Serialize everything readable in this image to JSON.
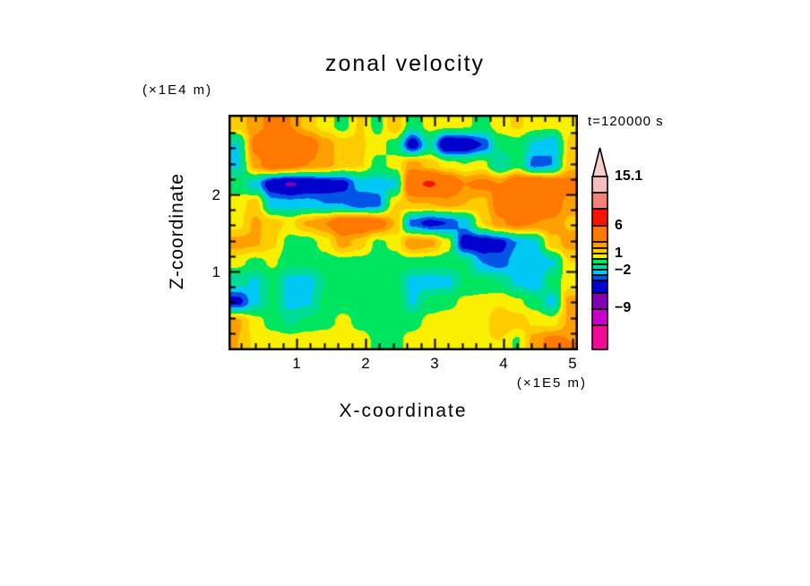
{
  "title": "zonal velocity",
  "time_label": "t=120000 s",
  "x_axis": {
    "title": "X-coordinate",
    "units": "(×1E5 m)",
    "ticks": [
      "1",
      "2",
      "3",
      "4",
      "5"
    ]
  },
  "y_axis": {
    "title": "Z-coordinate",
    "units": "(×1E4 m)",
    "ticks": [
      "2",
      "1"
    ]
  },
  "colorbar": {
    "labels": [
      "15.1",
      "6",
      "1",
      "−2",
      "−9"
    ],
    "arrow_color": "#F6CCCC"
  },
  "chart_data": {
    "type": "heatmap",
    "title": "zonal velocity",
    "xlabel": "X-coordinate",
    "ylabel": "Z-coordinate",
    "x_units": "(×1E5 m)",
    "y_units": "(×1E4 m)",
    "time": "t=120000 s",
    "xlim": [
      0,
      5.1
    ],
    "ylim": [
      0,
      3.05
    ],
    "x_major_ticks": [
      1,
      2,
      3,
      4,
      5
    ],
    "y_major_ticks": [
      1,
      2
    ],
    "minor_tick_step": 0.2,
    "value_range": [
      -15,
      15.1
    ],
    "colorbar_tick_labels": [
      "15.1",
      "6",
      "1",
      "−2",
      "−9"
    ],
    "contour_levels": [
      -12,
      -9,
      -6,
      -4,
      -3,
      -2,
      -1,
      0,
      1,
      2,
      3,
      6,
      9,
      12
    ],
    "colors": [
      "#F00A96",
      "#C800C8",
      "#8200B4",
      "#0000CD",
      "#0055E6",
      "#00C8F5",
      "#00DC96",
      "#00E55F",
      "#F8F000",
      "#FFCC00",
      "#FFA000",
      "#FF7800",
      "#F51400",
      "#F08278",
      "#F5BEBE"
    ],
    "colorbar_seg_heights": [
      18,
      18,
      19,
      18,
      7,
      6,
      6,
      6,
      6,
      6,
      6,
      14,
      18,
      18,
      27
    ],
    "grid_note": "approximate zonal velocity field, 12 rows (top to bottom) x 20 cols (left to right)",
    "grid": [
      [
        1.5,
        2.5,
        3.5,
        3.0,
        1.5,
        0.5,
        -0.5,
        1.2,
        -0.5,
        2.0,
        -1.0,
        0.5,
        0.5,
        0.3,
        -0.5,
        0.6,
        1.2,
        0.5,
        0.3,
        0.8
      ],
      [
        -2.0,
        3.5,
        5.5,
        4.5,
        4.0,
        2.5,
        1.5,
        1.2,
        0.5,
        -0.5,
        -5.0,
        -1.5,
        -6.0,
        -5.5,
        -4.0,
        -0.8,
        -0.5,
        -2.2,
        -3.0,
        1.2
      ],
      [
        -2.2,
        2.5,
        4.5,
        4.0,
        3.0,
        2.5,
        1.5,
        1.2,
        -0.4,
        0.4,
        2.5,
        1.5,
        0.5,
        0.0,
        0.5,
        -2.0,
        -0.5,
        -3.5,
        -3.0,
        1.5
      ],
      [
        -0.5,
        -2.3,
        -5.2,
        -6.2,
        -5.5,
        -5.0,
        -4.5,
        -2.5,
        -2.5,
        -2.2,
        5.5,
        6.3,
        5.0,
        3.0,
        3.5,
        3.0,
        4.5,
        5.0,
        4.5,
        3.5
      ],
      [
        0.5,
        1.5,
        -2.5,
        -2.6,
        -2.5,
        -3.0,
        -3.0,
        -4.0,
        -3.5,
        1.0,
        2.0,
        2.0,
        2.5,
        2.0,
        1.5,
        3.8,
        4.2,
        4.0,
        4.0,
        2.5
      ],
      [
        0.6,
        2.2,
        1.5,
        0.8,
        2.2,
        3.0,
        4.5,
        4.8,
        4.0,
        2.0,
        -3.5,
        -4.5,
        -4.0,
        -2.5,
        1.0,
        2.8,
        3.5,
        3.0,
        2.8,
        1.8
      ],
      [
        2.5,
        2.2,
        1.2,
        -0.5,
        -0.6,
        0.5,
        2.5,
        1.5,
        -0.3,
        0.3,
        3.0,
        2.5,
        0.5,
        -5.0,
        -5.2,
        -4.5,
        -3.0,
        -2.2,
        1.5,
        2.5
      ],
      [
        0.3,
        -0.4,
        0.2,
        -0.8,
        -0.7,
        -0.6,
        -0.5,
        -0.5,
        -0.4,
        -0.5,
        -0.6,
        -0.7,
        -0.6,
        -0.8,
        -3.0,
        -3.5,
        -2.5,
        -3.0,
        -2.2,
        1.0
      ],
      [
        -1.5,
        -2.2,
        -0.8,
        -2.4,
        -2.5,
        -1.0,
        -0.8,
        -0.6,
        -0.5,
        -0.6,
        -2.4,
        -2.5,
        -2.4,
        -0.8,
        -0.6,
        -1.0,
        -2.2,
        -3.0,
        -0.5,
        0.5
      ],
      [
        -4.5,
        -2.2,
        -0.8,
        -2.4,
        -2.2,
        -0.8,
        -0.6,
        -0.5,
        -0.4,
        -0.3,
        -2.2,
        -0.6,
        -0.3,
        0.2,
        0.3,
        0.8,
        0.2,
        -0.5,
        -2.5,
        2.5
      ],
      [
        2.2,
        0.5,
        -0.5,
        -1.2,
        -0.8,
        -0.5,
        0.3,
        -0.3,
        -0.5,
        -0.5,
        -0.4,
        0.3,
        0.5,
        0.6,
        0.5,
        2.0,
        1.5,
        0.8,
        0.5,
        2.2
      ],
      [
        2.0,
        0.8,
        0.6,
        0.5,
        0.7,
        0.8,
        0.7,
        0.4,
        -0.2,
        -0.3,
        0.4,
        0.6,
        0.7,
        0.8,
        0.9,
        1.0,
        -0.2,
        2.5,
        3.5,
        3.0
      ]
    ]
  }
}
